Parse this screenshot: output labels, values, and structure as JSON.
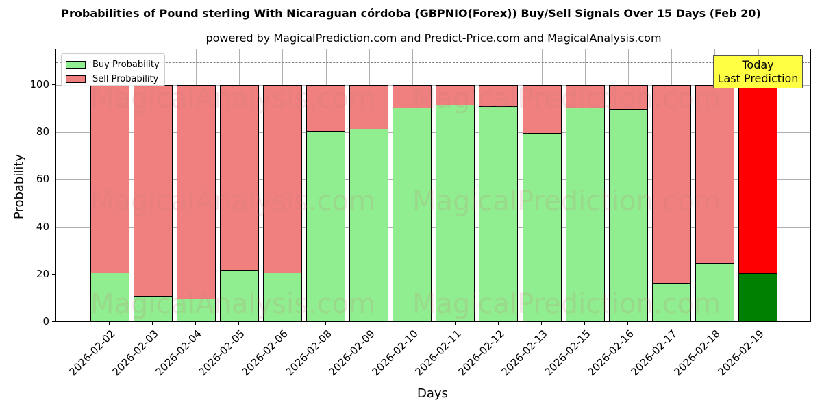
{
  "chart_data": {
    "type": "bar",
    "stacked": true,
    "title": "Probabilities of Pound sterling With Nicaraguan córdoba (GBPNIO(Forex)) Buy/Sell Signals Over 15 Days (Feb 20)",
    "subtitle": "powered by MagicalPrediction.com and Predict-Price.com and MagicalAnalysis.com",
    "xlabel": "Days",
    "ylabel": "Probability",
    "ylim": [
      0,
      115
    ],
    "yticks": [
      0,
      20,
      40,
      60,
      80,
      100
    ],
    "grid": true,
    "reference_line": {
      "y": 110,
      "style": "dashed"
    },
    "legend_position": "upper left",
    "categories": [
      "2026-02-02",
      "2026-02-03",
      "2026-02-04",
      "2026-02-05",
      "2026-02-06",
      "2026-02-08",
      "2026-02-09",
      "2026-02-10",
      "2026-02-11",
      "2026-02-12",
      "2026-02-13",
      "2026-02-15",
      "2026-02-16",
      "2026-02-17",
      "2026-02-18",
      "2026-02-19"
    ],
    "series": [
      {
        "name": "Buy Probability",
        "color": "#90ee90",
        "values": [
          20.8,
          11.0,
          9.8,
          22.1,
          20.7,
          80.5,
          81.5,
          90.5,
          91.7,
          90.9,
          79.8,
          90.5,
          89.8,
          16.4,
          24.8,
          20.6
        ]
      },
      {
        "name": "Sell Probability",
        "color": "#f08080",
        "values": [
          79.2,
          89.0,
          90.2,
          77.9,
          79.3,
          19.5,
          18.5,
          9.5,
          8.3,
          9.1,
          20.2,
          9.5,
          10.2,
          83.6,
          75.2,
          79.4
        ]
      }
    ],
    "highlight": {
      "index": 15,
      "buy_color": "#008000",
      "sell_color": "#ff0000"
    },
    "annotation": {
      "text_line1": "Today",
      "text_line2": "Last Prediction",
      "background": "#ffff44"
    },
    "watermarks": [
      "MagicalAnalysis.com",
      "MagicalPrediction.com"
    ]
  }
}
